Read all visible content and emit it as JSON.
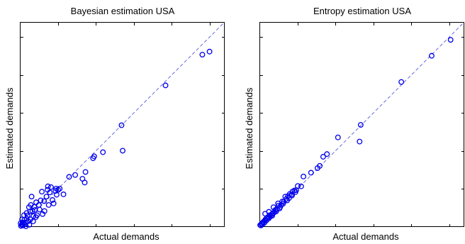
{
  "chart_data": [
    {
      "type": "scatter",
      "title": "Bayesian estimation USA",
      "xlabel": "Actual demands",
      "ylabel": "Estimated demands",
      "xlim": [
        0,
        5.4
      ],
      "ylim": [
        0,
        5.4
      ],
      "grid": false,
      "tick_labels": false,
      "reference_line": {
        "style": "dashed",
        "color": "#6a6ae0",
        "x": [
          0,
          5.4
        ],
        "y": [
          0,
          5.4
        ]
      },
      "marker_color": "#0000ee",
      "points": [
        [
          5.0,
          4.62
        ],
        [
          4.81,
          4.54
        ],
        [
          3.84,
          3.73
        ],
        [
          2.68,
          2.68
        ],
        [
          2.71,
          2.01
        ],
        [
          2.19,
          1.97
        ],
        [
          1.96,
          1.86
        ],
        [
          1.93,
          1.81
        ],
        [
          1.73,
          1.45
        ],
        [
          1.65,
          1.27
        ],
        [
          1.46,
          1.37
        ],
        [
          1.71,
          1.17
        ],
        [
          1.3,
          1.32
        ],
        [
          1.15,
          0.86
        ],
        [
          1.05,
          1.01
        ],
        [
          0.96,
          1.01
        ],
        [
          0.94,
          0.95
        ],
        [
          0.82,
          1.05
        ],
        [
          0.97,
          0.85
        ],
        [
          0.74,
          1.07
        ],
        [
          0.86,
          0.71
        ],
        [
          0.73,
          0.98
        ],
        [
          0.7,
          0.8
        ],
        [
          0.58,
          0.93
        ],
        [
          0.64,
          0.68
        ],
        [
          0.76,
          0.58
        ],
        [
          0.55,
          0.7
        ],
        [
          0.65,
          0.42
        ],
        [
          0.5,
          0.58
        ],
        [
          0.43,
          0.65
        ],
        [
          0.4,
          0.45
        ],
        [
          0.45,
          0.31
        ],
        [
          0.31,
          0.8
        ],
        [
          0.24,
          0.52
        ],
        [
          0.33,
          0.42
        ],
        [
          0.36,
          0.29
        ],
        [
          0.27,
          0.41
        ],
        [
          0.2,
          0.3
        ],
        [
          0.28,
          0.2
        ],
        [
          0.18,
          0.22
        ],
        [
          0.22,
          0.15
        ],
        [
          0.12,
          0.19
        ],
        [
          0.15,
          0.12
        ],
        [
          0.1,
          0.09
        ],
        [
          0.07,
          0.12
        ],
        [
          0.05,
          0.06
        ],
        [
          0.03,
          0.03
        ],
        [
          0.08,
          0.04
        ],
        [
          0.13,
          0.07
        ],
        [
          0.02,
          0.1
        ],
        [
          0.11,
          0.31
        ],
        [
          0.18,
          0.37
        ],
        [
          0.52,
          0.46
        ],
        [
          0.6,
          0.34
        ],
        [
          0.29,
          0.58
        ],
        [
          0.42,
          0.26
        ],
        [
          0.35,
          0.15
        ],
        [
          0.25,
          0.06
        ],
        [
          0.16,
          0.02
        ],
        [
          0.06,
          0.2
        ],
        [
          0.38,
          0.53
        ],
        [
          0.89,
          0.62
        ],
        [
          1.01,
          0.98
        ],
        [
          0.79,
          0.91
        ]
      ]
    },
    {
      "type": "scatter",
      "title": "Entropy estimation USA",
      "xlabel": "Actual demands",
      "ylabel": "Estimated demands",
      "xlim": [
        0,
        5.4
      ],
      "ylim": [
        0,
        5.4
      ],
      "grid": false,
      "tick_labels": false,
      "reference_line": {
        "style": "dashed",
        "color": "#6a6ae0",
        "x": [
          0,
          5.4
        ],
        "y": [
          0,
          5.4
        ]
      },
      "marker_color": "#0000ee",
      "points": [
        [
          5.04,
          4.93
        ],
        [
          4.54,
          4.51
        ],
        [
          3.74,
          3.82
        ],
        [
          2.67,
          2.69
        ],
        [
          2.64,
          2.25
        ],
        [
          2.07,
          2.36
        ],
        [
          1.78,
          1.92
        ],
        [
          1.68,
          1.85
        ],
        [
          1.59,
          1.61
        ],
        [
          1.53,
          1.55
        ],
        [
          1.36,
          1.43
        ],
        [
          1.16,
          1.33
        ],
        [
          1.1,
          1.07
        ],
        [
          1.01,
          1.08
        ],
        [
          0.97,
          0.97
        ],
        [
          0.92,
          0.96
        ],
        [
          0.87,
          0.93
        ],
        [
          0.84,
          0.85
        ],
        [
          0.8,
          0.87
        ],
        [
          0.75,
          0.81
        ],
        [
          0.71,
          0.74
        ],
        [
          0.68,
          0.8
        ],
        [
          0.64,
          0.66
        ],
        [
          0.6,
          0.67
        ],
        [
          0.57,
          0.58
        ],
        [
          0.55,
          0.53
        ],
        [
          0.5,
          0.56
        ],
        [
          0.46,
          0.47
        ],
        [
          0.42,
          0.45
        ],
        [
          0.4,
          0.39
        ],
        [
          0.36,
          0.37
        ],
        [
          0.33,
          0.34
        ],
        [
          0.3,
          0.28
        ],
        [
          0.27,
          0.31
        ],
        [
          0.24,
          0.22
        ],
        [
          0.21,
          0.25
        ],
        [
          0.18,
          0.17
        ],
        [
          0.16,
          0.2
        ],
        [
          0.13,
          0.11
        ],
        [
          0.11,
          0.14
        ],
        [
          0.08,
          0.07
        ],
        [
          0.06,
          0.09
        ],
        [
          0.04,
          0.04
        ],
        [
          0.02,
          0.05
        ],
        [
          0.09,
          0.12
        ],
        [
          0.14,
          0.16
        ],
        [
          0.19,
          0.23
        ],
        [
          0.26,
          0.26
        ],
        [
          0.34,
          0.3
        ],
        [
          0.44,
          0.41
        ],
        [
          0.53,
          0.49
        ],
        [
          0.62,
          0.61
        ],
        [
          0.73,
          0.7
        ],
        [
          0.86,
          0.83
        ],
        [
          0.78,
          0.76
        ],
        [
          0.95,
          0.92
        ],
        [
          0.15,
          0.35
        ],
        [
          0.25,
          0.4
        ],
        [
          0.37,
          0.52
        ],
        [
          0.49,
          0.62
        ]
      ]
    }
  ]
}
